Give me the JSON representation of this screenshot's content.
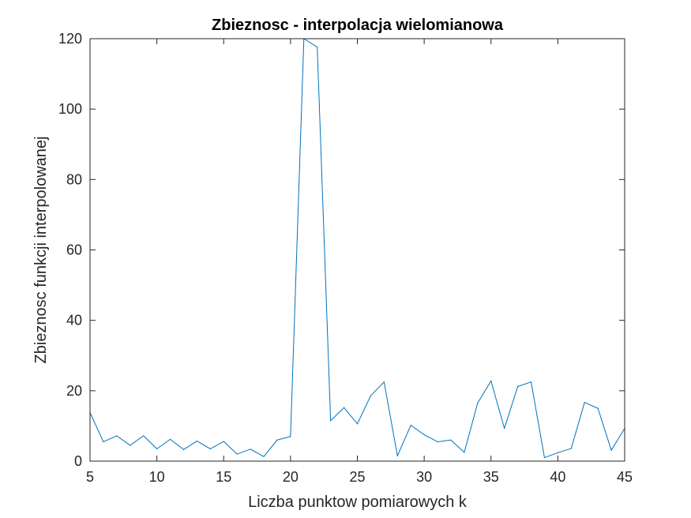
{
  "chart_data": {
    "type": "line",
    "title": "Zbieznosc - interpolacja wielomianowa",
    "xlabel": "Liczba punktow pomiarowych k",
    "ylabel": "Zbieznosc funkcji interpolowanej",
    "xlim": [
      5,
      45
    ],
    "ylim": [
      0,
      120
    ],
    "xticks": [
      5,
      10,
      15,
      20,
      25,
      30,
      35,
      40,
      45
    ],
    "yticks": [
      0,
      20,
      40,
      60,
      80,
      100,
      120
    ],
    "xtick_labels": [
      "5",
      "10",
      "15",
      "20",
      "25",
      "30",
      "35",
      "40",
      "45"
    ],
    "ytick_labels": [
      "0",
      "20",
      "40",
      "60",
      "80",
      "100",
      "120"
    ],
    "grid": false,
    "box": true,
    "series": [
      {
        "color": "#0072BD",
        "x": [
          5,
          6,
          7,
          8,
          9,
          10,
          11,
          12,
          13,
          14,
          15,
          16,
          17,
          18,
          19,
          20,
          21,
          22,
          23,
          24,
          25,
          26,
          27,
          28,
          29,
          30,
          31,
          32,
          33,
          34,
          35,
          36,
          37,
          38,
          39,
          40,
          41,
          42,
          43,
          44,
          45
        ],
        "y": [
          13.8,
          5.5,
          7.2,
          4.5,
          7.2,
          3.5,
          6.2,
          3.3,
          5.7,
          3.5,
          5.6,
          2.0,
          3.4,
          1.3,
          6.0,
          7.0,
          120.0,
          117.6,
          11.5,
          15.2,
          10.6,
          18.6,
          22.5,
          1.5,
          10.2,
          7.5,
          5.5,
          6.0,
          2.5,
          16.5,
          22.8,
          9.3,
          21.2,
          22.5,
          1.0,
          2.4,
          3.6,
          16.7,
          15.0,
          3.1,
          9.3
        ]
      }
    ]
  }
}
